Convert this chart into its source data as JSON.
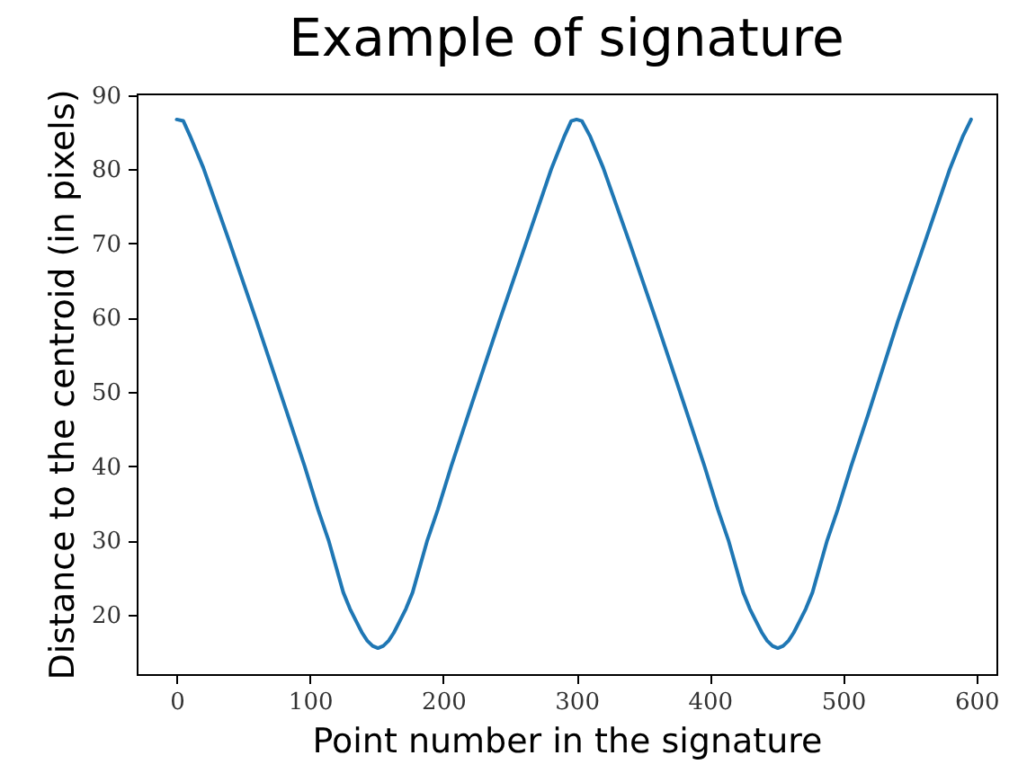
{
  "chart_data": {
    "type": "line",
    "title": "Example of signature",
    "xlabel": "Point number in the signature",
    "ylabel": "Distance to the centroid (in pixels)",
    "x": [
      0,
      5,
      10,
      20,
      40,
      60,
      83,
      96,
      106,
      114,
      125,
      130,
      135,
      139,
      143,
      147,
      151,
      155,
      159,
      163,
      167,
      172,
      177,
      188,
      196,
      206,
      219,
      242,
      262,
      281,
      291,
      296,
      300,
      304,
      310,
      320,
      340,
      360,
      383,
      396,
      406,
      414,
      425,
      430,
      435,
      439,
      443,
      447,
      451,
      455,
      459,
      463,
      467,
      472,
      477,
      488,
      496,
      506,
      519,
      541,
      561,
      580,
      590,
      596
    ],
    "series": [
      {
        "color": "#1f77b4",
        "values": [
          86.7,
          86.5,
          84.5,
          80.2,
          70,
          59.5,
          47.1,
          40,
          34.2,
          30,
          23,
          20.8,
          19,
          17.6,
          16.5,
          15.8,
          15.5,
          15.8,
          16.5,
          17.6,
          19,
          20.8,
          23,
          30,
          34.2,
          40,
          47.1,
          59.5,
          70,
          80,
          84.5,
          86.5,
          86.7,
          86.5,
          84.5,
          80.2,
          70,
          59.5,
          47.1,
          40,
          34.2,
          30,
          23,
          20.8,
          19,
          17.6,
          16.5,
          15.8,
          15.5,
          15.8,
          16.5,
          17.6,
          19,
          20.8,
          23,
          30,
          34.2,
          40,
          47.1,
          59.5,
          70,
          80,
          84.5,
          86.7
        ]
      }
    ],
    "xlim": [
      -30,
      615
    ],
    "ylim": [
      12,
      90.2
    ],
    "xticks": [
      0,
      100,
      200,
      300,
      400,
      500,
      600
    ],
    "yticks": [
      20,
      30,
      40,
      50,
      60,
      70,
      80,
      90
    ],
    "grid": false,
    "legend": false,
    "marker": "none",
    "line_style": "solid"
  }
}
